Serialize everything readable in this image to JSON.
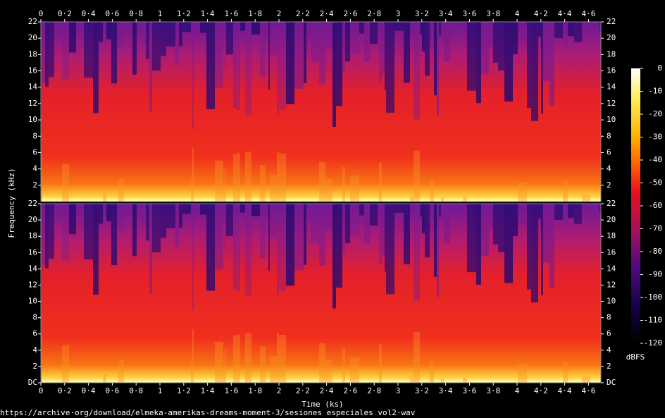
{
  "chart_data": {
    "type": "spectrogram",
    "x_label": "Time (ks)",
    "y_label": "Frequency (kHz)",
    "colorbar_label": "dBFS",
    "footer": "https://archive·org/download/elmeka-amerikas-dreams-moment-3/sesiones especiales vol2·wav",
    "xlim": [
      0,
      4.704
    ],
    "xticks": [
      0,
      {
        "value": 0.2,
        "label": "0·2"
      },
      {
        "value": 0.4,
        "label": "0·4"
      },
      {
        "value": 0.6,
        "label": "0·6"
      },
      {
        "value": 0.8,
        "label": "0·8"
      },
      1,
      {
        "value": 1.2,
        "label": "1·2"
      },
      {
        "value": 1.4,
        "label": "1·4"
      },
      {
        "value": 1.6,
        "label": "1·6"
      },
      {
        "value": 1.8,
        "label": "1·8"
      },
      2,
      {
        "value": 2.2,
        "label": "2·2"
      },
      {
        "value": 2.4,
        "label": "2·4"
      },
      {
        "value": 2.6,
        "label": "2·6"
      },
      {
        "value": 2.8,
        "label": "2·8"
      },
      3,
      {
        "value": 3.2,
        "label": "3·2"
      },
      {
        "value": 3.4,
        "label": "3·4"
      },
      {
        "value": 3.6,
        "label": "3·6"
      },
      {
        "value": 3.8,
        "label": "3·8"
      },
      4,
      {
        "value": 4.2,
        "label": "4·2"
      },
      {
        "value": 4.4,
        "label": "4·4"
      },
      {
        "value": 4.6,
        "label": "4·6"
      }
    ],
    "channels": [
      {
        "ylim": [
          0,
          22
        ],
        "yticks": [
          2,
          4,
          6,
          8,
          10,
          12,
          14,
          16,
          18,
          20,
          22
        ]
      },
      {
        "ylim": [
          0,
          22
        ],
        "yticks": [
          {
            "value": 0,
            "label": "DC"
          },
          2,
          4,
          6,
          8,
          10,
          12,
          14,
          16,
          18,
          20,
          22
        ]
      }
    ],
    "clim": [
      -120,
      0
    ],
    "cticks": [
      0,
      -10,
      -20,
      -30,
      -40,
      -50,
      -60,
      -70,
      -80,
      -90,
      -100,
      -110,
      -120
    ]
  }
}
